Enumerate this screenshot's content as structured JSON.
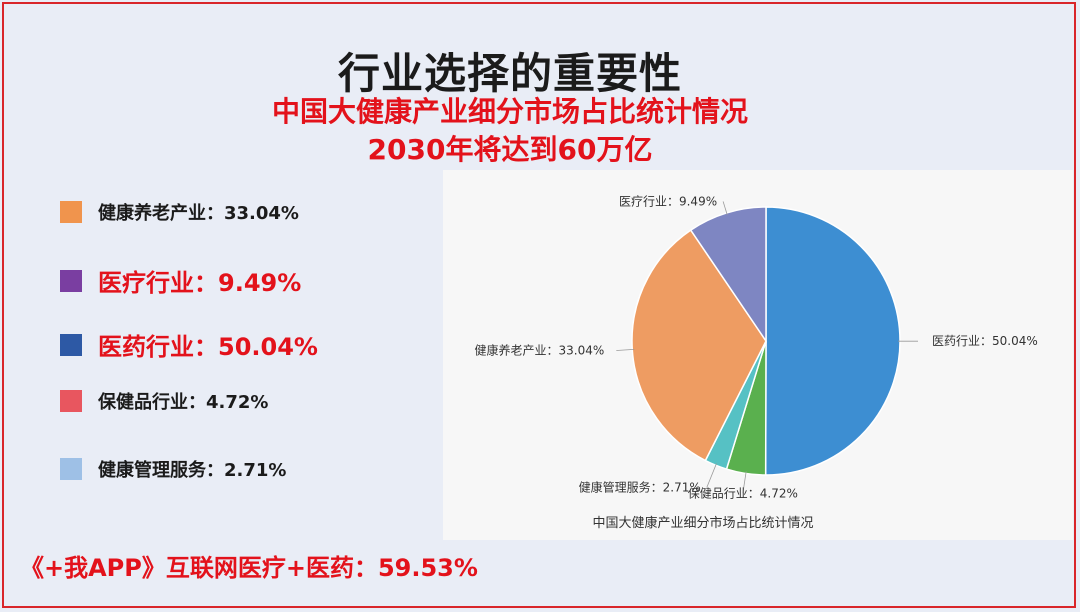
{
  "title": "行业选择的重要性",
  "subtitle_line1": "中国大健康产业细分市场占比统计情况",
  "subtitle_line2": "2030年将达到60万亿",
  "legend": [
    {
      "label": "健康养老产业：33.04%",
      "color": "#f0944d",
      "emphasis": false
    },
    {
      "label": "医疗行业：9.49%",
      "color": "#7a3ea1",
      "emphasis": true
    },
    {
      "label": "医药行业：50.04%",
      "color": "#2d59a5",
      "emphasis": true
    },
    {
      "label": "保健品行业：4.72%",
      "color": "#e8565f",
      "emphasis": false
    },
    {
      "label": "健康管理服务：2.71%",
      "color": "#9ec0e6",
      "emphasis": false
    }
  ],
  "footer": "《+我APP》互联网医疗+医药：59.53%",
  "chart_data": {
    "type": "pie",
    "title": "中国大健康产业细分市场占比统计情况",
    "slices": [
      {
        "label": "医药行业：50.04%",
        "value": 50.04,
        "color": "#3d8ed2"
      },
      {
        "label": "保健品行业：4.72%",
        "value": 4.72,
        "color": "#5ab04e"
      },
      {
        "label": "健康管理服务：2.71%",
        "value": 2.71,
        "color": "#56c1c4"
      },
      {
        "label": "健康养老产业：33.04%",
        "value": 33.04,
        "color": "#ee9c62"
      },
      {
        "label": "医疗行业：9.49%",
        "value": 9.49,
        "color": "#7e86c2"
      }
    ],
    "start": "12 o'clock",
    "direction": "clockwise"
  }
}
